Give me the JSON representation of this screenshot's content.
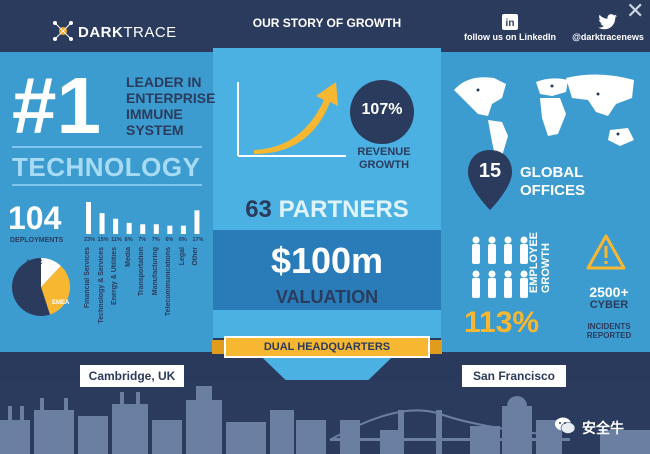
{
  "header": {
    "logo_text_bold": "DARK",
    "logo_text_thin": "TRACE",
    "banner": "OUR STORY OF GROWTH",
    "linkedin_label": "follow us on LinkedIn",
    "twitter_label": "@darktracenews",
    "close_symbol": "✕"
  },
  "left": {
    "rank": "#1",
    "leader_lines": [
      "LEADER IN",
      "ENTERPRISE",
      "IMMUNE",
      "SYSTEM"
    ],
    "technology": "TECHNOLOGY",
    "deployments_num": "104",
    "deployments_label": "DEPLOYMENTS",
    "regions": [
      "APAC",
      "U.S.",
      "EMEA"
    ],
    "region_shares": [
      0.12,
      0.33,
      0.55
    ],
    "sector_percents": [
      "23%",
      "15%",
      "11%",
      "8%",
      "7%",
      "7%",
      "6%",
      "6%",
      "17%"
    ],
    "sector_values": [
      23,
      15,
      11,
      8,
      7,
      7,
      6,
      6,
      17
    ],
    "sectors": [
      "Financial Services",
      "Technology & Services",
      "Energy & Utilities",
      "Media",
      "Transportation",
      "Manufacturing",
      "Telecommunications",
      "Legal",
      "Other"
    ]
  },
  "center": {
    "revenue_pct": "107%",
    "revenue_label_1": "REVENUE",
    "revenue_label_2": "GROWTH",
    "partners_num": "63",
    "partners_word": "PARTNERS",
    "valuation_num": "$100m",
    "valuation_label": "VALUATION",
    "dual_hq": "DUAL HEADQUARTERS"
  },
  "right": {
    "offices_num": "15",
    "offices_label_1": "GLOBAL",
    "offices_label_2": "OFFICES",
    "employee_label_1": "EMPLOYEE",
    "employee_label_2": "GROWTH",
    "employee_pct": "113%",
    "cyber_num": "2500+",
    "cyber_label": "CYBER",
    "cyber_sub_1": "INCIDENTS",
    "cyber_sub_2": "REPORTED"
  },
  "cities": {
    "left": "Cambridge, UK",
    "right": "San Francisco"
  },
  "watermark": "安全牛",
  "colors": {
    "navy": "#2b3b5d",
    "blue": "#3d9ccf",
    "light_blue": "#4bb1e2",
    "orange": "#f7b731"
  }
}
